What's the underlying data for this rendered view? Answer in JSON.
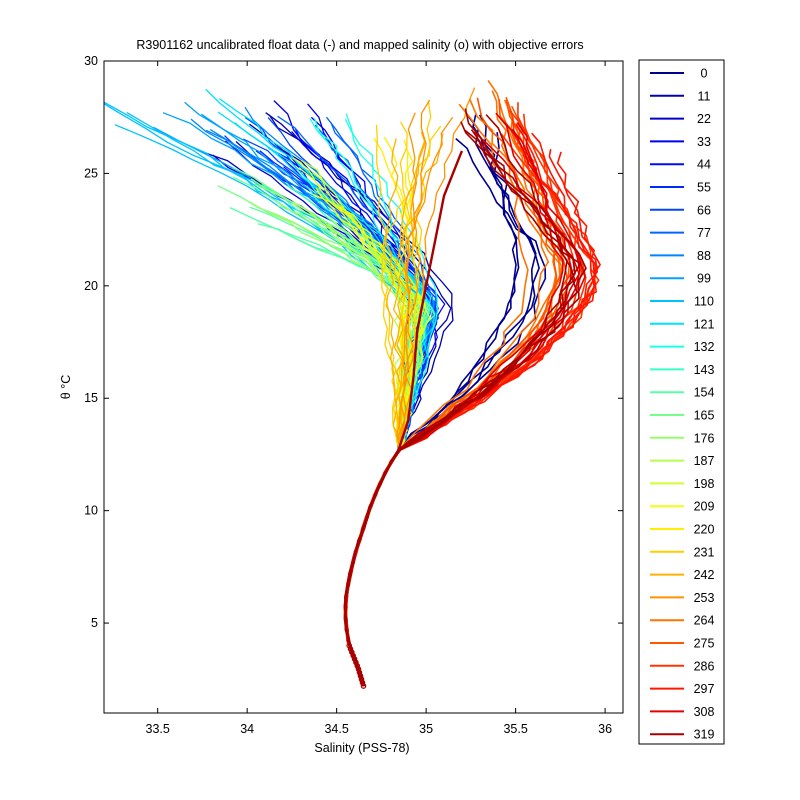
{
  "chart_data": {
    "type": "line",
    "title": "R3901162 uncalibrated float data (-) and mapped salinity (o) with objective errors",
    "xlabel": "Salinity (PSS-78)",
    "ylabel": "θ °C",
    "xlim": [
      33.2,
      36.1
    ],
    "ylim": [
      1,
      30
    ],
    "xticks": [
      33.5,
      34,
      34.5,
      35,
      35.5,
      36
    ],
    "xtick_labels": [
      "33.5",
      "34",
      "34.5",
      "35",
      "35.5",
      "36"
    ],
    "yticks": [
      5,
      10,
      15,
      20,
      25,
      30
    ],
    "ytick_labels": [
      "5",
      "10",
      "15",
      "20",
      "25",
      "30"
    ],
    "grid": false,
    "legend_position": "right-outside",
    "colormap": [
      "#00008f",
      "#0000ff",
      "#0080ff",
      "#00ffff",
      "#80ff80",
      "#ffff00",
      "#ff8000",
      "#ff0000",
      "#800000"
    ],
    "deep_curve": {
      "description_points_theta": [
        2.2,
        3.0,
        4.0,
        5.0,
        6.0,
        7.0,
        8.0,
        9.0,
        10.0,
        11.0,
        12.0,
        12.7
      ],
      "salinity": [
        34.65,
        34.62,
        34.57,
        34.55,
        34.55,
        34.57,
        34.6,
        34.64,
        34.68,
        34.73,
        34.79,
        34.85
      ]
    },
    "series": [
      {
        "name": "0",
        "color": "#00008f",
        "mode": "warm",
        "surface_salinity": 35.2,
        "top_theta": 27.0,
        "mid_salinity": 35.1
      },
      {
        "name": "11",
        "color": "#0000ad",
        "mode": "fresh",
        "surface_salinity": 34.0,
        "top_theta": 27.0,
        "mid_salinity": 35.1
      },
      {
        "name": "22",
        "color": "#0000cc",
        "mode": "fresh",
        "surface_salinity": 33.8,
        "top_theta": 26.0,
        "mid_salinity": 35.0
      },
      {
        "name": "33",
        "color": "#0000eb",
        "mode": "fresh",
        "surface_salinity": 34.3,
        "top_theta": 27.5,
        "mid_salinity": 35.0
      },
      {
        "name": "44",
        "color": "#000aff",
        "mode": "fresh",
        "surface_salinity": 34.1,
        "top_theta": 26.5,
        "mid_salinity": 35.0
      },
      {
        "name": "55",
        "color": "#0029ff",
        "mode": "fresh",
        "surface_salinity": 34.2,
        "top_theta": 25.5,
        "mid_salinity": 35.0
      },
      {
        "name": "66",
        "color": "#0047ff",
        "mode": "fresh",
        "surface_salinity": 34.0,
        "top_theta": 27.0,
        "mid_salinity": 35.0
      },
      {
        "name": "77",
        "color": "#0066ff",
        "mode": "fresh",
        "surface_salinity": 34.3,
        "top_theta": 27.8,
        "mid_salinity": 35.0
      },
      {
        "name": "88",
        "color": "#0085ff",
        "mode": "fresh",
        "surface_salinity": 33.8,
        "top_theta": 27.5,
        "mid_salinity": 35.0
      },
      {
        "name": "99",
        "color": "#00a3ff",
        "mode": "fresh",
        "surface_salinity": 33.6,
        "top_theta": 27.8,
        "mid_salinity": 35.0
      },
      {
        "name": "110",
        "color": "#00c2ff",
        "mode": "fresh",
        "surface_salinity": 33.3,
        "top_theta": 27.9,
        "mid_salinity": 34.95
      },
      {
        "name": "121",
        "color": "#00e0ff",
        "mode": "fresh",
        "surface_salinity": 33.9,
        "top_theta": 28.0,
        "mid_salinity": 35.0
      },
      {
        "name": "132",
        "color": "#1affe6",
        "mode": "fresh",
        "surface_salinity": 34.4,
        "top_theta": 27.0,
        "mid_salinity": 35.0
      },
      {
        "name": "143",
        "color": "#38ffc7",
        "mode": "fresh",
        "surface_salinity": 34.2,
        "top_theta": 25.0,
        "mid_salinity": 35.0
      },
      {
        "name": "154",
        "color": "#57ffa8",
        "mode": "fresh",
        "surface_salinity": 34.0,
        "top_theta": 23.0,
        "mid_salinity": 35.0
      },
      {
        "name": "165",
        "color": "#75ff8a",
        "mode": "fresh",
        "surface_salinity": 33.9,
        "top_theta": 25.0,
        "mid_salinity": 34.95
      },
      {
        "name": "176",
        "color": "#94ff6b",
        "mode": "fresh",
        "surface_salinity": 34.1,
        "top_theta": 24.0,
        "mid_salinity": 34.95
      },
      {
        "name": "187",
        "color": "#b3ff4d",
        "mode": "fresh",
        "surface_salinity": 34.3,
        "top_theta": 23.0,
        "mid_salinity": 34.95
      },
      {
        "name": "198",
        "color": "#d1ff2e",
        "mode": "fresh",
        "surface_salinity": 34.2,
        "top_theta": 25.0,
        "mid_salinity": 34.95
      },
      {
        "name": "209",
        "color": "#f0ff0f",
        "mode": "fresh",
        "surface_salinity": 34.5,
        "top_theta": 24.0,
        "mid_salinity": 34.95
      },
      {
        "name": "220",
        "color": "#ffee00",
        "mode": "mid",
        "surface_salinity": 34.8,
        "top_theta": 26.0,
        "mid_salinity": 34.9
      },
      {
        "name": "231",
        "color": "#ffcf00",
        "mode": "mid",
        "surface_salinity": 34.9,
        "top_theta": 27.5,
        "mid_salinity": 34.85
      },
      {
        "name": "242",
        "color": "#ffb000",
        "mode": "mid",
        "surface_salinity": 35.0,
        "top_theta": 27.0,
        "mid_salinity": 34.85
      },
      {
        "name": "253",
        "color": "#ff9200",
        "mode": "mid",
        "surface_salinity": 35.1,
        "top_theta": 28.0,
        "mid_salinity": 34.9
      },
      {
        "name": "264",
        "color": "#ff7300",
        "mode": "warm",
        "surface_salinity": 35.3,
        "top_theta": 28.5,
        "mid_salinity": 35.2
      },
      {
        "name": "275",
        "color": "#ff5500",
        "mode": "warm",
        "surface_salinity": 35.4,
        "top_theta": 28.0,
        "mid_salinity": 35.3
      },
      {
        "name": "286",
        "color": "#ff3600",
        "mode": "warm",
        "surface_salinity": 35.5,
        "top_theta": 27.5,
        "mid_salinity": 35.4
      },
      {
        "name": "297",
        "color": "#ff1700",
        "mode": "warm",
        "surface_salinity": 35.6,
        "top_theta": 26.5,
        "mid_salinity": 35.5
      },
      {
        "name": "308",
        "color": "#e30000",
        "mode": "warm",
        "surface_salinity": 35.4,
        "top_theta": 27.0,
        "mid_salinity": 35.4
      },
      {
        "name": "319",
        "color": "#a80000",
        "mode": "warm",
        "surface_salinity": 35.2,
        "top_theta": 27.5,
        "mid_salinity": 35.3
      }
    ]
  }
}
